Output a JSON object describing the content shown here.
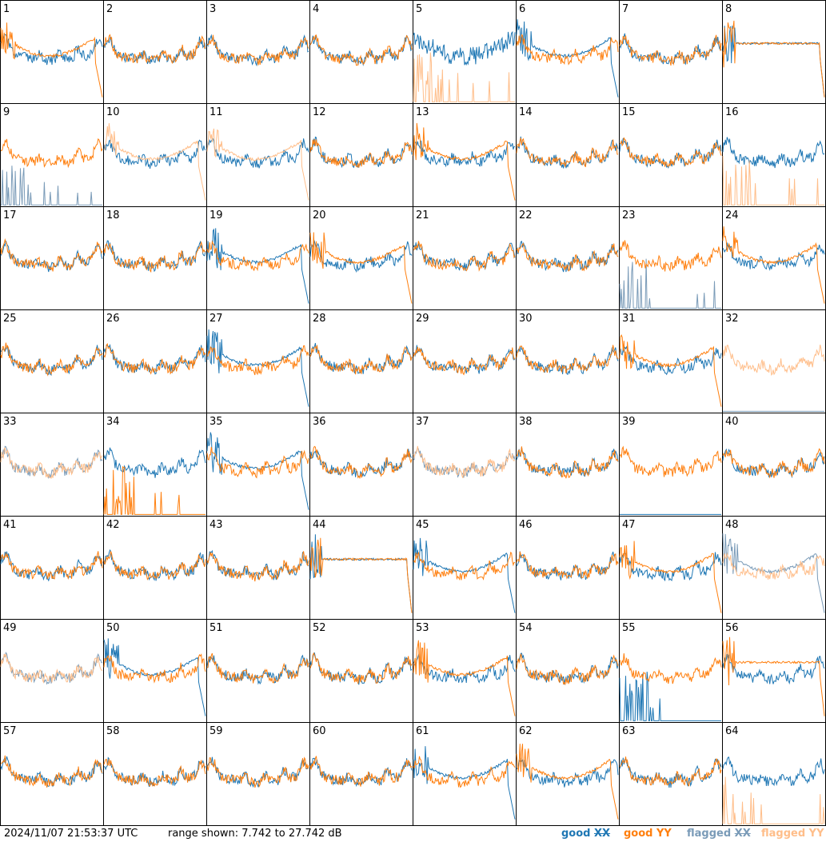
{
  "timestamp": "2024/11/07 21:53:37 UTC",
  "range_text": "range shown: 7.742 to 27.742 dB",
  "legend": {
    "good_xx": "good ",
    "good_yy": "good YY",
    "flagged_xx": "flagged ",
    "flagged_yy": "flagged YY",
    "xx_suffix": "XX"
  },
  "colors": {
    "good_xx": "#1f77b4",
    "good_yy": "#ff7f0e",
    "flagged_xx": "#7a9bb8",
    "flagged_yy": "#ffbe8a",
    "border": "#000000"
  },
  "chart_data": {
    "type": "line",
    "grid": "8x8 small multiples",
    "ylim": [
      7.742,
      27.742
    ],
    "y_unit": "dB",
    "series_kinds": [
      "good XX",
      "good YY",
      "flagged XX",
      "flagged YY"
    ],
    "panels": [
      {
        "id": "1",
        "xx": "normal",
        "yy": "low",
        "xx_flag": false,
        "yy_flag": false
      },
      {
        "id": "2",
        "xx": "normal",
        "yy": "normal",
        "xx_flag": false,
        "yy_flag": false
      },
      {
        "id": "3",
        "xx": "normal",
        "yy": "normal",
        "xx_flag": false,
        "yy_flag": false
      },
      {
        "id": "4",
        "xx": "normal",
        "yy": "normal",
        "xx_flag": false,
        "yy_flag": false
      },
      {
        "id": "5",
        "xx": "noisy",
        "yy": "dead_spikes",
        "xx_flag": false,
        "yy_flag": true
      },
      {
        "id": "6",
        "xx": "low",
        "yy": "normal",
        "xx_flag": false,
        "yy_flag": false
      },
      {
        "id": "7",
        "xx": "normal",
        "yy": "normal",
        "xx_flag": false,
        "yy_flag": false
      },
      {
        "id": "8",
        "xx": "flat",
        "yy": "flat",
        "xx_flag": false,
        "yy_flag": false
      },
      {
        "id": "9",
        "xx": "dead_spikes",
        "yy": "normal",
        "xx_flag": true,
        "yy_flag": false
      },
      {
        "id": "10",
        "xx": "normal",
        "yy": "low",
        "xx_flag": false,
        "yy_flag": true
      },
      {
        "id": "11",
        "xx": "normal",
        "yy": "low",
        "xx_flag": false,
        "yy_flag": true
      },
      {
        "id": "12",
        "xx": "normal",
        "yy": "normal",
        "xx_flag": false,
        "yy_flag": false
      },
      {
        "id": "13",
        "xx": "normal",
        "yy": "low",
        "xx_flag": false,
        "yy_flag": false
      },
      {
        "id": "14",
        "xx": "normal",
        "yy": "normal",
        "xx_flag": false,
        "yy_flag": false
      },
      {
        "id": "15",
        "xx": "normal",
        "yy": "normal",
        "xx_flag": false,
        "yy_flag": false
      },
      {
        "id": "16",
        "xx": "normal",
        "yy": "dead_spikes",
        "xx_flag": false,
        "yy_flag": true
      },
      {
        "id": "17",
        "xx": "normal",
        "yy": "normal",
        "xx_flag": false,
        "yy_flag": false
      },
      {
        "id": "18",
        "xx": "normal",
        "yy": "normal",
        "xx_flag": false,
        "yy_flag": false
      },
      {
        "id": "19",
        "xx": "low",
        "yy": "normal",
        "xx_flag": false,
        "yy_flag": false
      },
      {
        "id": "20",
        "xx": "normal",
        "yy": "low",
        "xx_flag": false,
        "yy_flag": false
      },
      {
        "id": "21",
        "xx": "normal",
        "yy": "normal",
        "xx_flag": false,
        "yy_flag": false
      },
      {
        "id": "22",
        "xx": "normal",
        "yy": "normal",
        "xx_flag": false,
        "yy_flag": false
      },
      {
        "id": "23",
        "xx": "dead_spikes",
        "yy": "normal",
        "xx_flag": true,
        "yy_flag": false
      },
      {
        "id": "24",
        "xx": "normal",
        "yy": "low",
        "xx_flag": false,
        "yy_flag": false
      },
      {
        "id": "25",
        "xx": "normal",
        "yy": "normal",
        "xx_flag": false,
        "yy_flag": false
      },
      {
        "id": "26",
        "xx": "normal",
        "yy": "normal",
        "xx_flag": false,
        "yy_flag": false
      },
      {
        "id": "27",
        "xx": "low",
        "yy": "normal",
        "xx_flag": false,
        "yy_flag": false
      },
      {
        "id": "28",
        "xx": "normal",
        "yy": "normal",
        "xx_flag": false,
        "yy_flag": false
      },
      {
        "id": "29",
        "xx": "normal",
        "yy": "normal",
        "xx_flag": false,
        "yy_flag": false
      },
      {
        "id": "30",
        "xx": "normal",
        "yy": "normal",
        "xx_flag": false,
        "yy_flag": false
      },
      {
        "id": "31",
        "xx": "normal",
        "yy": "low",
        "xx_flag": false,
        "yy_flag": false
      },
      {
        "id": "32",
        "xx": "dead",
        "yy": "normal",
        "xx_flag": true,
        "yy_flag": true
      },
      {
        "id": "33",
        "xx": "normal",
        "yy": "normal",
        "xx_flag": true,
        "yy_flag": true
      },
      {
        "id": "34",
        "xx": "normal",
        "yy": "dead_spikes",
        "xx_flag": false,
        "yy_flag": false
      },
      {
        "id": "35",
        "xx": "low",
        "yy": "normal",
        "xx_flag": false,
        "yy_flag": false
      },
      {
        "id": "36",
        "xx": "normal",
        "yy": "normal",
        "xx_flag": false,
        "yy_flag": false
      },
      {
        "id": "37",
        "xx": "normal",
        "yy": "normal",
        "xx_flag": true,
        "yy_flag": true
      },
      {
        "id": "38",
        "xx": "normal",
        "yy": "normal",
        "xx_flag": false,
        "yy_flag": false
      },
      {
        "id": "39",
        "xx": "dead",
        "yy": "normal",
        "xx_flag": false,
        "yy_flag": false
      },
      {
        "id": "40",
        "xx": "normal",
        "yy": "normal",
        "xx_flag": false,
        "yy_flag": false
      },
      {
        "id": "41",
        "xx": "normal",
        "yy": "normal",
        "xx_flag": false,
        "yy_flag": false
      },
      {
        "id": "42",
        "xx": "normal",
        "yy": "normal",
        "xx_flag": false,
        "yy_flag": false
      },
      {
        "id": "43",
        "xx": "normal",
        "yy": "normal",
        "xx_flag": false,
        "yy_flag": false
      },
      {
        "id": "44",
        "xx": "flat",
        "yy": "flat",
        "xx_flag": false,
        "yy_flag": false
      },
      {
        "id": "45",
        "xx": "low",
        "yy": "normal",
        "xx_flag": false,
        "yy_flag": false
      },
      {
        "id": "46",
        "xx": "normal",
        "yy": "normal",
        "xx_flag": false,
        "yy_flag": false
      },
      {
        "id": "47",
        "xx": "normal",
        "yy": "low",
        "xx_flag": false,
        "yy_flag": false
      },
      {
        "id": "48",
        "xx": "low",
        "yy": "normal",
        "xx_flag": true,
        "yy_flag": true
      },
      {
        "id": "49",
        "xx": "normal",
        "yy": "normal",
        "xx_flag": true,
        "yy_flag": true
      },
      {
        "id": "50",
        "xx": "low",
        "yy": "normal",
        "xx_flag": false,
        "yy_flag": false
      },
      {
        "id": "51",
        "xx": "normal",
        "yy": "normal",
        "xx_flag": false,
        "yy_flag": false
      },
      {
        "id": "52",
        "xx": "normal",
        "yy": "normal",
        "xx_flag": false,
        "yy_flag": false
      },
      {
        "id": "53",
        "xx": "normal",
        "yy": "low",
        "xx_flag": false,
        "yy_flag": false
      },
      {
        "id": "54",
        "xx": "normal",
        "yy": "normal",
        "xx_flag": false,
        "yy_flag": false
      },
      {
        "id": "55",
        "xx": "dead_spikes",
        "yy": "normal",
        "xx_flag": false,
        "yy_flag": false
      },
      {
        "id": "56",
        "xx": "normal",
        "yy": "flat",
        "xx_flag": false,
        "yy_flag": false
      },
      {
        "id": "57",
        "xx": "normal",
        "yy": "normal",
        "xx_flag": false,
        "yy_flag": false
      },
      {
        "id": "58",
        "xx": "normal",
        "yy": "normal",
        "xx_flag": false,
        "yy_flag": false
      },
      {
        "id": "59",
        "xx": "normal",
        "yy": "normal",
        "xx_flag": false,
        "yy_flag": false
      },
      {
        "id": "60",
        "xx": "normal",
        "yy": "normal",
        "xx_flag": false,
        "yy_flag": false
      },
      {
        "id": "61",
        "xx": "low",
        "yy": "normal",
        "xx_flag": false,
        "yy_flag": false
      },
      {
        "id": "62",
        "xx": "normal",
        "yy": "low",
        "xx_flag": false,
        "yy_flag": false
      },
      {
        "id": "63",
        "xx": "normal",
        "yy": "normal",
        "xx_flag": false,
        "yy_flag": false
      },
      {
        "id": "64",
        "xx": "normal",
        "yy": "dead_spikes",
        "xx_flag": false,
        "yy_flag": true
      }
    ]
  }
}
